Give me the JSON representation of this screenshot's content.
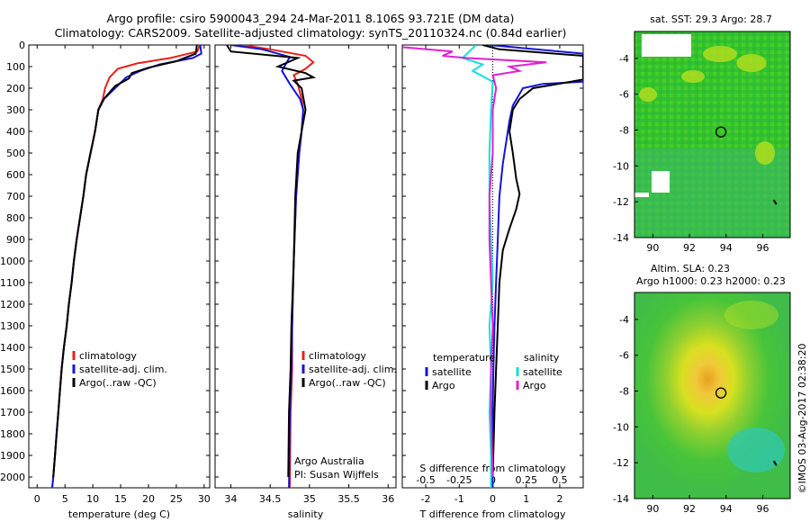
{
  "header": {
    "line1": "Argo profile: csiro 5900043_294 24-Mar-2011 8.106S 93.721E (DM data)",
    "line2": "Climatology: CARS2009. Satellite-adjusted climatology: synTS_20110324.nc (0.84d earlier)"
  },
  "side_text": "©IMOS 03-Aug-2017 02:38:20",
  "colors": {
    "climatology": "#e8201a",
    "satellite": "#1414d8",
    "argo": "#000000",
    "argo_sal_diff": "#e020d0",
    "sat_sal_diff": "#10e0e0"
  },
  "chart_data": [
    {
      "type": "line",
      "id": "temperature",
      "xlabel": "temperature (deg C)",
      "xlim": [
        -1.5,
        31
      ],
      "xticks": [
        0,
        5,
        10,
        15,
        20,
        25,
        30
      ],
      "ylim": [
        2050,
        0
      ],
      "yticks": [
        0,
        100,
        200,
        300,
        400,
        500,
        600,
        700,
        800,
        900,
        1000,
        1100,
        1200,
        1300,
        1400,
        1500,
        1600,
        1700,
        1800,
        1900,
        2000
      ],
      "legend": [
        "climatology",
        "satellite-adj. clim.",
        "Argo(..raw -QC)"
      ],
      "series": [
        {
          "name": "climatology",
          "color": "#e8201a",
          "points": [
            [
              29.2,
              0
            ],
            [
              28.8,
              30
            ],
            [
              24,
              60
            ],
            [
              18,
              85
            ],
            [
              14.5,
              110
            ],
            [
              13,
              150
            ],
            [
              12.2,
              200
            ],
            [
              11.8,
              250
            ],
            [
              11,
              300
            ],
            [
              10.4,
              400
            ],
            [
              9.6,
              500
            ],
            [
              8.8,
              600
            ],
            [
              8.3,
              700
            ],
            [
              7.7,
              800
            ],
            [
              7.1,
              900
            ],
            [
              6.6,
              1000
            ],
            [
              6.2,
              1100
            ],
            [
              5.7,
              1200
            ],
            [
              5.3,
              1300
            ],
            [
              4.8,
              1400
            ],
            [
              4.4,
              1500
            ],
            [
              4.1,
              1600
            ],
            [
              3.8,
              1700
            ],
            [
              3.5,
              1800
            ],
            [
              3.2,
              1900
            ],
            [
              2.9,
              2000
            ],
            [
              2.7,
              2050
            ]
          ]
        },
        {
          "name": "satellite-adj. clim.",
          "color": "#1414d8",
          "points": [
            [
              29.3,
              0
            ],
            [
              29.5,
              40
            ],
            [
              28,
              60
            ],
            [
              22,
              90
            ],
            [
              18.5,
              120
            ],
            [
              16,
              150
            ],
            [
              14,
              200
            ],
            [
              12,
              250
            ],
            [
              11,
              300
            ],
            [
              10.4,
              400
            ],
            [
              9.6,
              500
            ],
            [
              8.8,
              600
            ],
            [
              8.3,
              700
            ],
            [
              7.7,
              800
            ],
            [
              7.1,
              900
            ],
            [
              6.6,
              1000
            ],
            [
              6.2,
              1100
            ],
            [
              5.7,
              1200
            ],
            [
              5.3,
              1300
            ],
            [
              4.8,
              1400
            ],
            [
              4.4,
              1500
            ],
            [
              4.1,
              1600
            ],
            [
              3.8,
              1700
            ],
            [
              3.5,
              1800
            ],
            [
              3.2,
              1900
            ],
            [
              2.9,
              2000
            ],
            [
              2.7,
              2050
            ]
          ]
        },
        {
          "name": "Argo(..raw -QC)",
          "color": "#000000",
          "points": [
            [
              28.7,
              0
            ],
            [
              28.5,
              40
            ],
            [
              25,
              75
            ],
            [
              20,
              105
            ],
            [
              17,
              130
            ],
            [
              16.5,
              155
            ],
            [
              14,
              190
            ],
            [
              12,
              250
            ],
            [
              11,
              300
            ],
            [
              10.4,
              400
            ],
            [
              9.6,
              500
            ],
            [
              8.8,
              600
            ],
            [
              8.3,
              700
            ],
            [
              7.7,
              800
            ],
            [
              7.1,
              900
            ],
            [
              6.6,
              1000
            ],
            [
              6.2,
              1100
            ],
            [
              5.7,
              1200
            ],
            [
              5.3,
              1300
            ],
            [
              4.8,
              1400
            ],
            [
              4.4,
              1500
            ],
            [
              4.1,
              1600
            ],
            [
              3.8,
              1700
            ],
            [
              3.5,
              1800
            ],
            [
              3.2,
              1900
            ],
            [
              2.9,
              2000
            ]
          ]
        }
      ]
    },
    {
      "type": "line",
      "id": "salinity",
      "xlabel": "salinity",
      "xlim": [
        33.8,
        36.1
      ],
      "xticks": [
        34,
        34.5,
        35,
        35.5,
        36
      ],
      "ylim": [
        2050,
        0
      ],
      "legend": [
        "climatology",
        "satellite-adj. clim.",
        "Argo(..raw -QC)"
      ],
      "annotation": [
        "Argo Australia",
        "PI: Susan Wijffels"
      ],
      "series": [
        {
          "name": "climatology",
          "color": "#e8201a",
          "points": [
            [
              34.15,
              0
            ],
            [
              34.5,
              20
            ],
            [
              34.95,
              50
            ],
            [
              35.05,
              80
            ],
            [
              34.95,
              110
            ],
            [
              34.8,
              140
            ],
            [
              34.85,
              180
            ],
            [
              34.9,
              250
            ],
            [
              34.92,
              300
            ],
            [
              34.9,
              400
            ],
            [
              34.87,
              500
            ],
            [
              34.83,
              700
            ],
            [
              34.8,
              1000
            ],
            [
              34.78,
              1300
            ],
            [
              34.78,
              1500
            ],
            [
              34.76,
              1700
            ],
            [
              34.75,
              2050
            ]
          ]
        },
        {
          "name": "satellite-adj. clim.",
          "color": "#1414d8",
          "points": [
            [
              34.0,
              0
            ],
            [
              34.4,
              20
            ],
            [
              34.75,
              55
            ],
            [
              34.65,
              120
            ],
            [
              34.75,
              180
            ],
            [
              34.88,
              250
            ],
            [
              34.92,
              300
            ],
            [
              34.9,
              400
            ],
            [
              34.87,
              500
            ],
            [
              34.83,
              700
            ],
            [
              34.8,
              1000
            ],
            [
              34.78,
              1300
            ],
            [
              34.77,
              1500
            ],
            [
              34.75,
              1700
            ],
            [
              34.74,
              2050
            ]
          ]
        },
        {
          "name": "Argo(..raw -QC)",
          "color": "#000000",
          "points": [
            [
              33.95,
              0
            ],
            [
              34.0,
              30
            ],
            [
              34.85,
              60
            ],
            [
              34.6,
              100
            ],
            [
              34.95,
              130
            ],
            [
              35.05,
              150
            ],
            [
              34.8,
              165
            ],
            [
              34.9,
              200
            ],
            [
              34.95,
              300
            ],
            [
              34.9,
              400
            ],
            [
              34.85,
              500
            ],
            [
              34.82,
              700
            ],
            [
              34.8,
              1000
            ],
            [
              34.77,
              1300
            ],
            [
              34.76,
              1500
            ],
            [
              34.74,
              1700
            ],
            [
              34.73,
              2000
            ]
          ]
        }
      ]
    },
    {
      "type": "line",
      "id": "differences",
      "xlabel": "T difference from climatology",
      "xlabel_top": "S difference from climatology",
      "xlim": [
        -2.7,
        2.7
      ],
      "xticks": [
        -2,
        -1,
        0,
        1,
        2
      ],
      "xticks_s_labels": [
        "-0.5",
        "-0.25",
        "0",
        "0.25",
        "0.5"
      ],
      "ylim": [
        2050,
        0
      ],
      "legend_headers": [
        "temperature",
        "salinity"
      ],
      "legend": [
        "satellite",
        "Argo",
        "satellite",
        "Argo"
      ],
      "series": [
        {
          "name": "T satellite",
          "color": "#1414d8",
          "points": [
            [
              -0.1,
              0
            ],
            [
              2.7,
              40
            ],
            [
              2.7,
              170
            ],
            [
              1.5,
              180
            ],
            [
              0.9,
              200
            ],
            [
              0.6,
              280
            ],
            [
              0.5,
              350
            ],
            [
              0.4,
              450
            ],
            [
              0.3,
              550
            ],
            [
              0.2,
              700
            ],
            [
              0.15,
              900
            ],
            [
              0.1,
              1100
            ],
            [
              0.05,
              1300
            ],
            [
              0.02,
              1500
            ],
            [
              0,
              1700
            ],
            [
              0,
              2050
            ]
          ]
        },
        {
          "name": "T Argo",
          "color": "#000000",
          "points": [
            [
              -0.3,
              0
            ],
            [
              0.2,
              20
            ],
            [
              2.7,
              50
            ],
            [
              2.7,
              160
            ],
            [
              1.2,
              200
            ],
            [
              0.8,
              250
            ],
            [
              0.6,
              300
            ],
            [
              0.5,
              400
            ],
            [
              0.6,
              500
            ],
            [
              0.7,
              620
            ],
            [
              0.8,
              690
            ],
            [
              0.7,
              760
            ],
            [
              0.5,
              850
            ],
            [
              0.3,
              950
            ],
            [
              0.2,
              1100
            ],
            [
              0.15,
              1300
            ],
            [
              0.1,
              1500
            ],
            [
              0.05,
              1700
            ],
            [
              0,
              2000
            ]
          ]
        },
        {
          "name": "S satellite",
          "color": "#10e0e0",
          "points": [
            [
              -0.5,
              0
            ],
            [
              -0.7,
              30
            ],
            [
              -0.9,
              60
            ],
            [
              -0.3,
              90
            ],
            [
              -0.6,
              120
            ],
            [
              0,
              170
            ],
            [
              -0.05,
              300
            ],
            [
              -0.1,
              500
            ],
            [
              -0.1,
              700
            ],
            [
              -0.05,
              900
            ],
            [
              0,
              1100
            ],
            [
              -0.1,
              1300
            ],
            [
              -0.05,
              1500
            ],
            [
              -0.1,
              1700
            ],
            [
              -0.05,
              1900
            ],
            [
              -0.05,
              2050
            ]
          ]
        },
        {
          "name": "S Argo",
          "color": "#e020d0",
          "points": [
            [
              -2.7,
              10
            ],
            [
              -1.2,
              30
            ],
            [
              -1.5,
              50
            ],
            [
              -0.8,
              60
            ],
            [
              1.6,
              80
            ],
            [
              0.5,
              100
            ],
            [
              0.8,
              120
            ],
            [
              0,
              140
            ],
            [
              0.1,
              200
            ],
            [
              0,
              300
            ],
            [
              0,
              500
            ],
            [
              -0.1,
              700
            ],
            [
              -0.1,
              900
            ],
            [
              -0.05,
              1100
            ],
            [
              0,
              1300
            ],
            [
              -0.05,
              1500
            ],
            [
              -0.05,
              1700
            ],
            [
              0,
              2000
            ]
          ]
        }
      ]
    },
    {
      "type": "heatmap",
      "id": "sst_map",
      "title": "sat. SST: 29.3 Argo: 28.7",
      "xlim": [
        89,
        97.5
      ],
      "ylim": [
        -14,
        -2.5
      ],
      "xticks": [
        90,
        92,
        94,
        96
      ],
      "yticks": [
        -4,
        -6,
        -8,
        -10,
        -12,
        -14
      ],
      "argo_position": [
        93.721,
        -8.106
      ]
    },
    {
      "type": "heatmap",
      "id": "sla_map",
      "title": "Altim. SLA: 0.23",
      "subtitle": "Argo h1000: 0.23 h2000: 0.23",
      "xlim": [
        89,
        97.5
      ],
      "ylim": [
        -14,
        -2.5
      ],
      "xticks": [
        90,
        92,
        94,
        96
      ],
      "yticks": [
        -4,
        -6,
        -8,
        -10,
        -12,
        -14
      ],
      "argo_position": [
        93.721,
        -8.106
      ]
    }
  ]
}
